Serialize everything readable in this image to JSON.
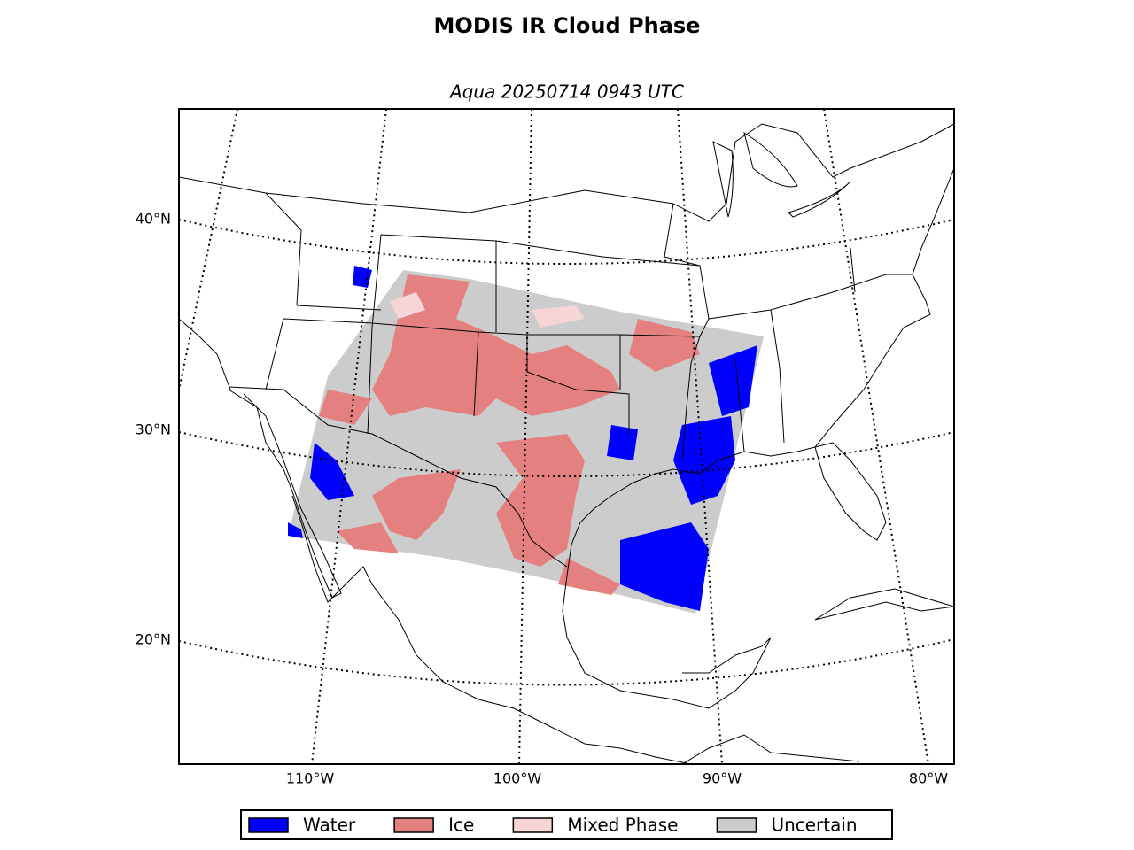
{
  "title": "MODIS IR Cloud Phase",
  "subtitle": "Aqua 20250714 0943 UTC",
  "lat_labels": [
    "40°N",
    "30°N",
    "20°N"
  ],
  "lon_labels": [
    "110°W",
    "100°W",
    "90°W",
    "80°W"
  ],
  "legend": [
    {
      "name": "Water",
      "color": "#0000ff"
    },
    {
      "name": "Ice",
      "color": "#e48080"
    },
    {
      "name": "Mixed Phase",
      "color": "#f5d5d5"
    },
    {
      "name": "Uncertain",
      "color": "#cccccc"
    }
  ]
}
